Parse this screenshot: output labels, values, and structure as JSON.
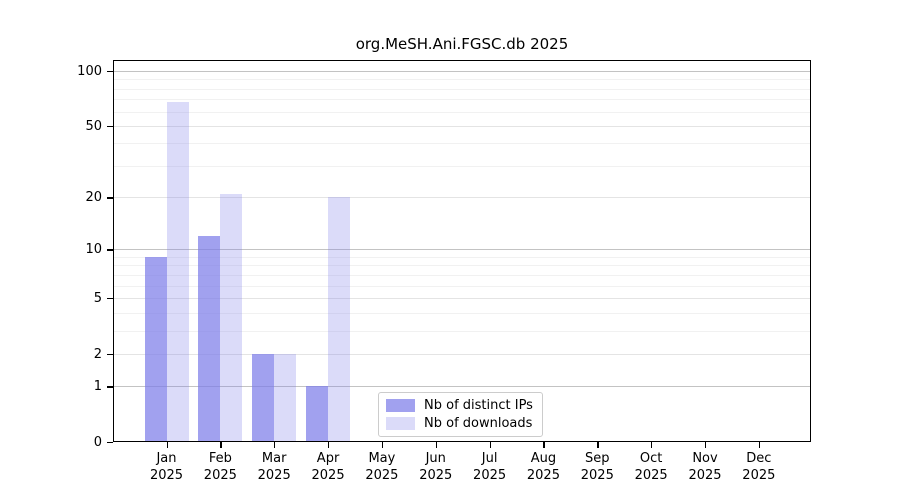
{
  "chart_data": {
    "type": "bar",
    "title": "org.MeSH.Ani.FGSC.db 2025",
    "categories": [
      "Jan",
      "Feb",
      "Mar",
      "Apr",
      "May",
      "Jun",
      "Jul",
      "Aug",
      "Sep",
      "Oct",
      "Nov",
      "Dec"
    ],
    "x_year_label": "2025",
    "series": [
      {
        "name": "Nb of distinct IPs",
        "color_hex": "#a3a3ee",
        "fill": "rgba(125,125,233,0.72)",
        "values": [
          9,
          12,
          2,
          1,
          0,
          0,
          0,
          0,
          0,
          0,
          0,
          0
        ]
      },
      {
        "name": "Nb of downloads",
        "color_hex": "#d9d9f6",
        "fill": "rgba(125,125,233,0.28)",
        "values": [
          68,
          21,
          2,
          20,
          0,
          0,
          0,
          0,
          0,
          0,
          0,
          0
        ]
      }
    ],
    "y_axis": {
      "scale": "log1p",
      "ticks": [
        0,
        1,
        2,
        5,
        10,
        20,
        50,
        100
      ],
      "tick_labels": [
        "0",
        "1",
        "2",
        "5",
        "10",
        "20",
        "50",
        "100"
      ],
      "minor_ticks": [
        3,
        4,
        6,
        7,
        8,
        9,
        30,
        40,
        60,
        70,
        80,
        90
      ],
      "decade_ticks": [
        1,
        10,
        100
      ],
      "range_top_value": 115
    },
    "xlabel": "",
    "ylabel": "",
    "grid": {
      "decade_line_color": "#c3c3c3",
      "major_line_color": "#e4e4e4",
      "minor_line_color": "#f1f1f1"
    },
    "legend": {
      "position": "bottom-center",
      "entries": [
        "Nb of distinct IPs",
        "Nb of downloads"
      ]
    },
    "frame_color": "#000000",
    "background_color": "#ffffff"
  }
}
